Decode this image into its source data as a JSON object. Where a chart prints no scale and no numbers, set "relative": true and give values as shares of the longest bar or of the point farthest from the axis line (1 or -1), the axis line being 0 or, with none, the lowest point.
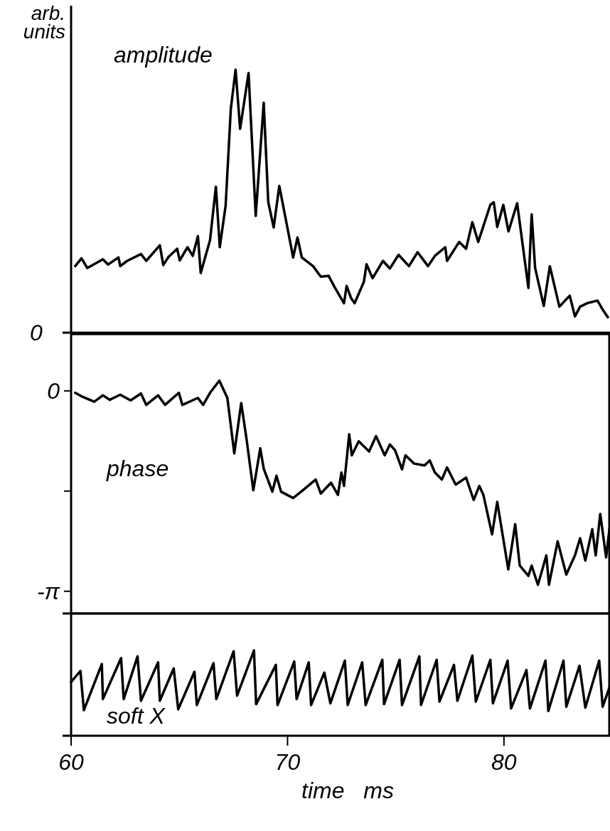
{
  "chart_data": [
    {
      "type": "line",
      "relative": true,
      "ylabel": "arb. units",
      "annotations": [
        "amplitude",
        "0"
      ],
      "xlim": [
        60,
        84.9
      ],
      "tick_labels": false,
      "color": "#000000",
      "x": [
        60.19,
        60.48,
        60.75,
        61.47,
        61.71,
        62.19,
        62.27,
        62.59,
        63.23,
        63.47,
        64.1,
        64.26,
        64.5,
        64.9,
        65.02,
        65.38,
        65.62,
        65.86,
        65.99,
        66.42,
        66.69,
        66.87,
        67.14,
        67.38,
        67.6,
        67.81,
        68.2,
        68.53,
        68.9,
        69.11,
        69.36,
        69.62,
        70.26,
        70.46,
        70.66,
        71.18,
        71.54,
        71.9,
        72.17,
        72.61,
        72.73,
        72.94,
        73.1,
        73.53,
        73.65,
        73.93,
        74.41,
        74.73,
        75.13,
        75.61,
        76.01,
        76.49,
        76.81,
        77.29,
        77.37,
        77.93,
        78.25,
        78.54,
        78.81,
        79.37,
        79.53,
        79.69,
        79.97,
        80.21,
        80.61,
        81.13,
        81.28,
        81.44,
        81.84,
        82.12,
        82.56,
        83.04,
        83.28,
        83.52,
        83.84,
        84.32,
        84.56,
        84.8
      ],
      "values": [
        0.253,
        0.283,
        0.246,
        0.279,
        0.259,
        0.286,
        0.253,
        0.273,
        0.299,
        0.273,
        0.332,
        0.257,
        0.288,
        0.319,
        0.275,
        0.325,
        0.292,
        0.367,
        0.227,
        0.352,
        0.555,
        0.325,
        0.483,
        0.851,
        1.0,
        0.775,
        0.987,
        0.444,
        0.874,
        0.496,
        0.4,
        0.558,
        0.286,
        0.362,
        0.286,
        0.253,
        0.213,
        0.216,
        0.174,
        0.112,
        0.178,
        0.131,
        0.112,
        0.194,
        0.26,
        0.207,
        0.273,
        0.244,
        0.296,
        0.253,
        0.306,
        0.253,
        0.292,
        0.325,
        0.273,
        0.345,
        0.319,
        0.42,
        0.345,
        0.486,
        0.496,
        0.402,
        0.486,
        0.385,
        0.492,
        0.17,
        0.45,
        0.246,
        0.102,
        0.253,
        0.099,
        0.141,
        0.062,
        0.099,
        0.112,
        0.122,
        0.088,
        0.059
      ]
    },
    {
      "type": "line",
      "annotations": [
        "phase"
      ],
      "xlim": [
        60,
        84.9
      ],
      "ylim": [
        -3.49,
        0.89
      ],
      "yticks": [
        0,
        {
          "value": -1.5708,
          "label": null
        },
        {
          "value": -3.1416,
          "label": "-π"
        }
      ],
      "tick_labels": "y",
      "color": "#000000",
      "x": [
        60.19,
        60.51,
        61.07,
        61.47,
        61.79,
        62.27,
        62.75,
        63.23,
        63.47,
        64.02,
        64.34,
        64.98,
        65.14,
        65.86,
        66.1,
        66.42,
        66.85,
        67.22,
        67.54,
        67.86,
        68.1,
        68.42,
        68.74,
        68.9,
        69.3,
        69.49,
        69.7,
        70.26,
        70.74,
        71.3,
        71.54,
        72.01,
        72.33,
        72.49,
        72.61,
        72.85,
        72.97,
        73.29,
        73.77,
        74.09,
        74.49,
        74.73,
        74.97,
        75.29,
        75.45,
        75.85,
        76.33,
        76.57,
        76.81,
        77.13,
        77.37,
        77.77,
        78.25,
        78.6,
        78.86,
        79.05,
        79.45,
        79.69,
        80.2,
        80.52,
        80.73,
        81.13,
        81.28,
        81.57,
        81.96,
        82.08,
        82.48,
        82.88,
        83.28,
        83.52,
        83.76,
        84.08,
        84.24,
        84.45,
        84.72,
        84.88
      ],
      "values": [
        -0.03,
        -0.09,
        -0.17,
        -0.07,
        -0.14,
        -0.06,
        -0.15,
        -0.04,
        -0.22,
        -0.07,
        -0.22,
        -0.03,
        -0.22,
        -0.11,
        -0.22,
        -0.03,
        0.16,
        -0.11,
        -0.98,
        -0.19,
        -0.74,
        -1.56,
        -0.9,
        -1.22,
        -1.58,
        -1.33,
        -1.58,
        -1.68,
        -1.55,
        -1.39,
        -1.61,
        -1.44,
        -1.63,
        -1.28,
        -1.49,
        -0.68,
        -1.01,
        -0.79,
        -0.95,
        -0.71,
        -1.01,
        -0.84,
        -0.93,
        -1.23,
        -1.01,
        -1.14,
        -1.17,
        -1.09,
        -1.28,
        -1.39,
        -1.2,
        -1.47,
        -1.36,
        -1.71,
        -1.49,
        -1.63,
        -2.25,
        -1.74,
        -2.8,
        -2.09,
        -2.74,
        -2.9,
        -2.74,
        -3.04,
        -2.58,
        -3.04,
        -2.36,
        -2.88,
        -2.58,
        -2.31,
        -2.66,
        -2.17,
        -2.58,
        -1.93,
        -2.61,
        -2.15
      ]
    },
    {
      "type": "line",
      "relative": true,
      "annotations": [
        "soft X"
      ],
      "xlabel": "time   ms",
      "xlim": [
        60,
        84.9
      ],
      "xticks": [
        60,
        70,
        80
      ],
      "tick_labels": "x",
      "color": "#000000",
      "x": [
        60.0,
        60.43,
        60.59,
        61.42,
        61.47,
        62.31,
        62.43,
        63.07,
        63.23,
        64.02,
        64.1,
        64.74,
        64.95,
        65.7,
        65.81,
        66.58,
        66.71,
        67.51,
        67.67,
        68.45,
        68.55,
        69.46,
        69.54,
        70.31,
        70.42,
        70.98,
        71.09,
        71.7,
        71.98,
        72.65,
        72.78,
        73.45,
        73.61,
        74.38,
        74.46,
        75.18,
        75.29,
        76.09,
        76.17,
        76.89,
        77.02,
        77.69,
        77.85,
        78.54,
        78.7,
        79.37,
        79.49,
        80.17,
        80.33,
        81.04,
        81.2,
        81.92,
        82.05,
        82.75,
        82.88,
        83.49,
        83.76,
        84.4,
        84.56,
        84.88
      ],
      "values": [
        0.63,
        0.76,
        0.3,
        0.84,
        0.43,
        0.91,
        0.43,
        0.93,
        0.41,
        0.86,
        0.41,
        0.79,
        0.31,
        0.75,
        0.36,
        0.85,
        0.43,
        0.99,
        0.47,
        1.0,
        0.37,
        0.83,
        0.36,
        0.87,
        0.43,
        0.86,
        0.36,
        0.74,
        0.38,
        0.88,
        0.36,
        0.86,
        0.36,
        0.89,
        0.37,
        0.89,
        0.36,
        0.93,
        0.36,
        0.89,
        0.4,
        0.83,
        0.41,
        0.94,
        0.4,
        0.89,
        0.38,
        0.88,
        0.32,
        0.77,
        0.32,
        0.88,
        0.29,
        0.88,
        0.34,
        0.82,
        0.33,
        0.88,
        0.34,
        0.57
      ]
    }
  ]
}
